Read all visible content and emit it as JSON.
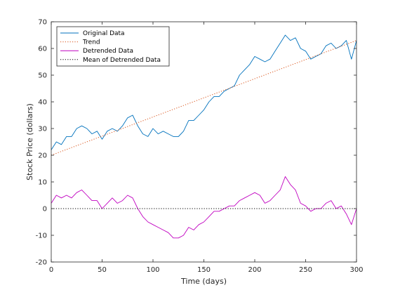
{
  "chart_data": {
    "type": "line",
    "title": "",
    "xlabel": "Time (days)",
    "ylabel": "Stock Price (dollars)",
    "xlim": [
      0,
      300
    ],
    "ylim": [
      -20,
      70
    ],
    "xticks": [
      0,
      50,
      100,
      150,
      200,
      250,
      300
    ],
    "yticks": [
      -20,
      -10,
      0,
      10,
      20,
      30,
      40,
      50,
      60,
      70
    ],
    "grid": false,
    "legend_position": "top-left",
    "series": [
      {
        "name": "Original Data",
        "color": "#0072BD",
        "style": "solid",
        "x": [
          0,
          5,
          10,
          15,
          20,
          25,
          30,
          35,
          40,
          45,
          50,
          55,
          60,
          65,
          70,
          75,
          80,
          85,
          90,
          95,
          100,
          105,
          110,
          115,
          120,
          125,
          130,
          135,
          140,
          145,
          150,
          155,
          160,
          165,
          170,
          175,
          180,
          185,
          190,
          195,
          200,
          205,
          210,
          215,
          220,
          225,
          230,
          235,
          240,
          245,
          250,
          255,
          260,
          265,
          270,
          275,
          280,
          285,
          290,
          295,
          300
        ],
        "y": [
          22,
          25,
          24,
          27,
          27,
          30,
          31,
          30,
          28,
          29,
          26,
          29,
          30,
          29,
          31,
          34,
          35,
          31,
          28,
          27,
          30,
          28,
          29,
          28,
          27,
          27,
          29,
          33,
          33,
          35,
          37,
          40,
          42,
          42,
          44,
          45,
          46,
          50,
          52,
          54,
          57,
          56,
          55,
          56,
          59,
          62,
          65,
          63,
          64,
          60,
          59,
          56,
          57,
          58,
          61,
          62,
          60,
          61,
          63,
          56,
          63
        ]
      },
      {
        "name": "Trend",
        "color": "#D95319",
        "style": "dotted",
        "x": [
          0,
          300
        ],
        "y": [
          20,
          63
        ]
      },
      {
        "name": "Detrended Data",
        "color": "#C000C0",
        "style": "solid",
        "x": [
          0,
          5,
          10,
          15,
          20,
          25,
          30,
          35,
          40,
          45,
          50,
          55,
          60,
          65,
          70,
          75,
          80,
          85,
          90,
          95,
          100,
          105,
          110,
          115,
          120,
          125,
          130,
          135,
          140,
          145,
          150,
          155,
          160,
          165,
          170,
          175,
          180,
          185,
          190,
          195,
          200,
          205,
          210,
          215,
          220,
          225,
          230,
          235,
          240,
          245,
          250,
          255,
          260,
          265,
          270,
          275,
          280,
          285,
          290,
          295,
          300
        ],
        "y": [
          2,
          5,
          4,
          5,
          4,
          6,
          7,
          5,
          3,
          3,
          0,
          2,
          4,
          2,
          3,
          5,
          4,
          0,
          -3,
          -5,
          -6,
          -7,
          -8,
          -9,
          -11,
          -11,
          -10,
          -7,
          -8,
          -6,
          -5,
          -3,
          -1,
          -1,
          0,
          1,
          1,
          3,
          4,
          5,
          6,
          5,
          2,
          3,
          5,
          7,
          12,
          9,
          7,
          2,
          1,
          -1,
          0,
          0,
          2,
          3,
          0,
          1,
          -2,
          -6,
          0
        ]
      },
      {
        "name": "Mean of Detrended Data",
        "color": "#000000",
        "style": "dotted",
        "x": [
          0,
          300
        ],
        "y": [
          0,
          0
        ]
      }
    ]
  }
}
